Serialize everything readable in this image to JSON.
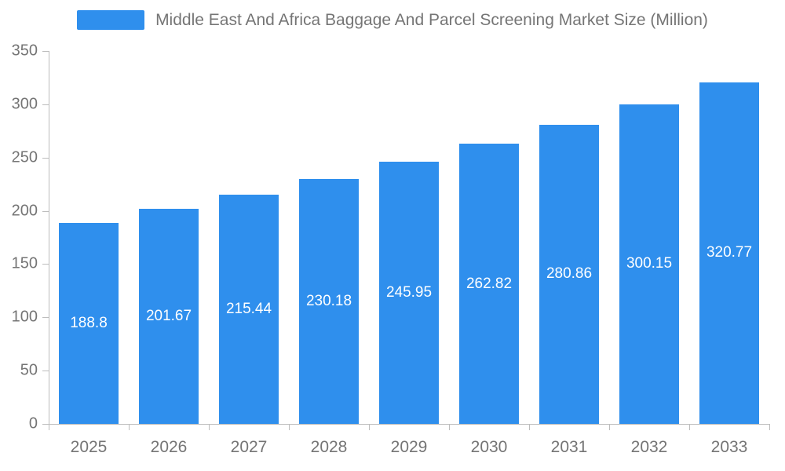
{
  "chart_data": {
    "type": "bar",
    "title": "Middle East And Africa Baggage And Parcel Screening Market Size (Million)",
    "categories": [
      "2025",
      "2026",
      "2027",
      "2028",
      "2029",
      "2030",
      "2031",
      "2032",
      "2033"
    ],
    "values": [
      188.8,
      201.67,
      215.44,
      230.18,
      245.95,
      262.82,
      280.86,
      300.15,
      320.77
    ],
    "xlabel": "",
    "ylabel": "",
    "ylim": [
      0,
      350
    ],
    "yticks": [
      0,
      50,
      100,
      150,
      200,
      250,
      300,
      350
    ],
    "grid": false,
    "legend_position": "top",
    "colors": {
      "bar": "#2F8FED",
      "bar_label": "#FFFFFF",
      "axis_line": "#BDBDBD",
      "tick_label": "#757575",
      "title": "#757575",
      "background": "#FFFFFF"
    }
  }
}
